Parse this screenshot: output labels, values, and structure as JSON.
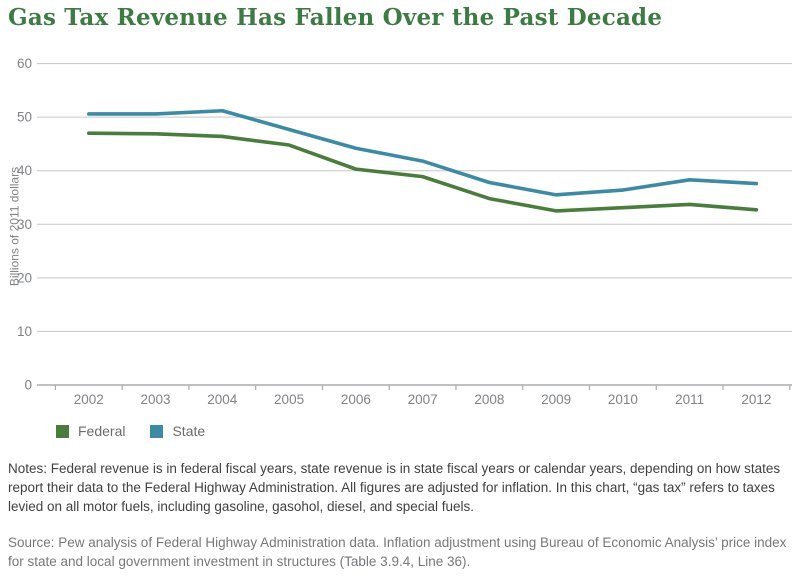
{
  "title": "Gas Tax Revenue Has Fallen Over the Past Decade",
  "colors": {
    "title": "#3e7b44",
    "grid": "#c6c6c6",
    "axis_line": "#a9abae",
    "tick_text": "#808285",
    "legend_text": "#6a6b6e",
    "notes_text": "#414042",
    "source_text": "#77787b"
  },
  "chart_data": {
    "type": "line",
    "categories": [
      "2002",
      "2003",
      "2004",
      "2005",
      "2006",
      "2007",
      "2008",
      "2009",
      "2010",
      "2011",
      "2012"
    ],
    "series": [
      {
        "name": "Federal",
        "color": "#4a7c3e",
        "values": [
          47.0,
          46.9,
          46.4,
          44.8,
          40.3,
          38.9,
          34.8,
          32.5,
          33.1,
          33.7,
          32.7
        ]
      },
      {
        "name": "State",
        "color": "#3e89a4",
        "values": [
          50.6,
          50.6,
          51.2,
          47.7,
          44.2,
          41.8,
          37.8,
          35.5,
          36.4,
          38.3,
          37.6
        ]
      }
    ],
    "ylabel": "Billions of 2011 dollars",
    "xlabel": "",
    "yticks": [
      0,
      10,
      20,
      30,
      40,
      50,
      60
    ],
    "ylim": [
      0,
      60
    ],
    "grid": true,
    "legend_position": "bottom-left"
  },
  "notes": "Notes: Federal revenue is in federal fiscal years, state revenue is in state fiscal years or calendar years, depending on how states report their data to the Federal Highway Administration. All figures are adjusted for inflation. In this chart, “gas tax” refers to taxes levied on all motor fuels, including gasoline, gasohol, diesel, and special fuels.",
  "source": "Source: Pew analysis of Federal Highway Administration data. Inflation adjustment using Bureau of Economic Analysis’ price index for state and local government investment in structures (Table 3.9.4, Line 36)."
}
